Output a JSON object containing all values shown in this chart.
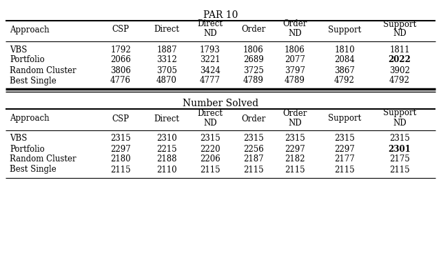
{
  "title1": "PAR 10",
  "title2": "Number Solved",
  "col_headers": [
    "Approach",
    "CSP",
    "Direct",
    "Direct\nND",
    "Order",
    "Order\nND",
    "Support",
    "Support\nND"
  ],
  "par10_rows": [
    [
      "VBS",
      "1792",
      "1887",
      "1793",
      "1806",
      "1806",
      "1810",
      "1811"
    ],
    [
      "Portfolio",
      "2066",
      "3312",
      "3221",
      "2689",
      "2077",
      "2084",
      "2022"
    ],
    [
      "Random Cluster",
      "3806",
      "3705",
      "3424",
      "3725",
      "3797",
      "3867",
      "3902"
    ],
    [
      "Best Single",
      "4776",
      "4870",
      "4777",
      "4789",
      "4789",
      "4792",
      "4792"
    ]
  ],
  "par10_bold_cells": [
    [
      1,
      7
    ]
  ],
  "numsolved_rows": [
    [
      "VBS",
      "2315",
      "2310",
      "2315",
      "2315",
      "2315",
      "2315",
      "2315"
    ],
    [
      "Portfolio",
      "2297",
      "2215",
      "2220",
      "2256",
      "2297",
      "2297",
      "2301"
    ],
    [
      "Random Cluster",
      "2180",
      "2188",
      "2206",
      "2187",
      "2182",
      "2177",
      "2175"
    ],
    [
      "Best Single",
      "2115",
      "2110",
      "2115",
      "2115",
      "2115",
      "2115",
      "2115"
    ]
  ],
  "numsolved_bold_cells": [
    [
      1,
      7
    ]
  ],
  "bg_color": "#ffffff",
  "text_color": "#000000",
  "font_size": 8.5,
  "title_font_size": 10
}
